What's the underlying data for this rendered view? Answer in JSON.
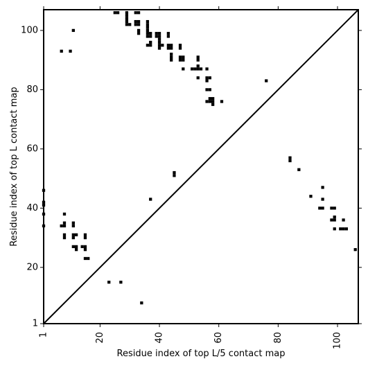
{
  "chart_data": {
    "type": "heatmap",
    "title": "",
    "xlabel": "Residue index of top L/5 contact map",
    "ylabel": "Residue index of top L contact map",
    "xlim": [
      1,
      107
    ],
    "ylim": [
      1,
      107
    ],
    "xticks": [
      1,
      20,
      40,
      60,
      80,
      100
    ],
    "yticks": [
      1,
      20,
      40,
      60,
      80,
      100
    ],
    "x_tick_rotation": -90,
    "grid": false,
    "diagonal": true,
    "cell_color": "#000000",
    "background_color": "#ffffff",
    "upper_contacts": [
      [
        25,
        106
      ],
      [
        26,
        106
      ],
      [
        29,
        106
      ],
      [
        32,
        106
      ],
      [
        33,
        106
      ],
      [
        29,
        105
      ],
      [
        29,
        104
      ],
      [
        29,
        103
      ],
      [
        29,
        102
      ],
      [
        30,
        102
      ],
      [
        32,
        103
      ],
      [
        33,
        103
      ],
      [
        32,
        102
      ],
      [
        33,
        102
      ],
      [
        36,
        103
      ],
      [
        36,
        102
      ],
      [
        36,
        101
      ],
      [
        36,
        100
      ],
      [
        33,
        100
      ],
      [
        33,
        99
      ],
      [
        11,
        100
      ],
      [
        36,
        99
      ],
      [
        37,
        99
      ],
      [
        39,
        99
      ],
      [
        40,
        99
      ],
      [
        43,
        99
      ],
      [
        36,
        98
      ],
      [
        37,
        98
      ],
      [
        39,
        98
      ],
      [
        40,
        98
      ],
      [
        43,
        98
      ],
      [
        40,
        97
      ],
      [
        37,
        96
      ],
      [
        40,
        96
      ],
      [
        36,
        95
      ],
      [
        37,
        95
      ],
      [
        40,
        95
      ],
      [
        41,
        95
      ],
      [
        43,
        95
      ],
      [
        44,
        95
      ],
      [
        47,
        95
      ],
      [
        40,
        94
      ],
      [
        43,
        94
      ],
      [
        44,
        94
      ],
      [
        47,
        94
      ],
      [
        7,
        93
      ],
      [
        10,
        93
      ],
      [
        44,
        92
      ],
      [
        44,
        91
      ],
      [
        47,
        91
      ],
      [
        48,
        91
      ],
      [
        53,
        91
      ],
      [
        44,
        90
      ],
      [
        47,
        90
      ],
      [
        48,
        90
      ],
      [
        53,
        90
      ],
      [
        53,
        88
      ],
      [
        48,
        87
      ],
      [
        51,
        87
      ],
      [
        52,
        87
      ],
      [
        53,
        87
      ],
      [
        54,
        87
      ],
      [
        56,
        87
      ],
      [
        53,
        84
      ],
      [
        56,
        84
      ],
      [
        57,
        84
      ],
      [
        56,
        83
      ],
      [
        76,
        83
      ],
      [
        56,
        80
      ],
      [
        57,
        80
      ],
      [
        57,
        77
      ],
      [
        58,
        77
      ],
      [
        56,
        76
      ],
      [
        57,
        76
      ],
      [
        58,
        76
      ],
      [
        61,
        76
      ],
      [
        58,
        75
      ]
    ],
    "lower_contacts": [
      [
        84,
        57
      ],
      [
        84,
        56
      ],
      [
        87,
        53
      ],
      [
        45,
        52
      ],
      [
        45,
        51
      ],
      [
        95,
        47
      ],
      [
        1,
        46
      ],
      [
        91,
        44
      ],
      [
        37,
        43
      ],
      [
        95,
        43
      ],
      [
        1,
        42
      ],
      [
        1,
        41
      ],
      [
        94,
        40
      ],
      [
        95,
        40
      ],
      [
        98,
        40
      ],
      [
        99,
        40
      ],
      [
        1,
        38
      ],
      [
        8,
        38
      ],
      [
        98,
        36
      ],
      [
        99,
        36
      ],
      [
        102,
        36
      ],
      [
        99,
        37
      ],
      [
        8,
        35
      ],
      [
        11,
        35
      ],
      [
        7,
        34
      ],
      [
        8,
        34
      ],
      [
        11,
        34
      ],
      [
        1,
        34
      ],
      [
        99,
        33
      ],
      [
        101,
        33
      ],
      [
        102,
        33
      ],
      [
        103,
        33
      ],
      [
        11,
        31
      ],
      [
        12,
        31
      ],
      [
        15,
        31
      ],
      [
        8,
        31
      ],
      [
        8,
        30
      ],
      [
        11,
        30
      ],
      [
        15,
        30
      ],
      [
        11,
        27
      ],
      [
        12,
        27
      ],
      [
        14,
        27
      ],
      [
        15,
        27
      ],
      [
        12,
        26
      ],
      [
        15,
        26
      ],
      [
        106,
        26
      ],
      [
        15,
        23
      ],
      [
        16,
        23
      ],
      [
        23,
        15
      ],
      [
        27,
        15
      ],
      [
        34,
        8
      ]
    ]
  }
}
